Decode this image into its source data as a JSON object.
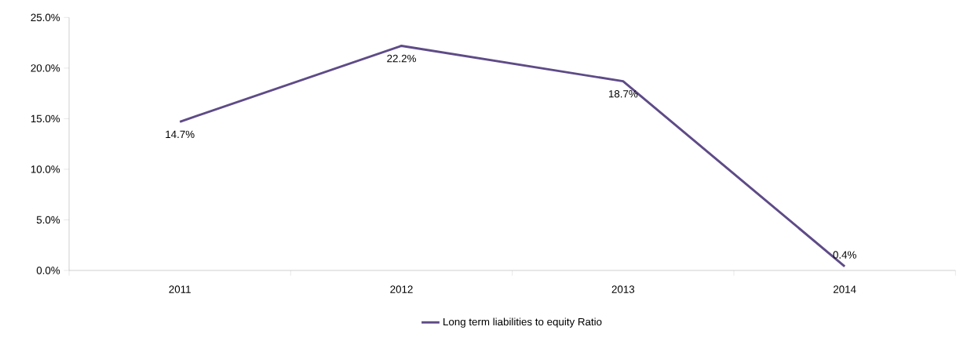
{
  "chart_data": {
    "type": "line",
    "categories": [
      "2011",
      "2012",
      "2013",
      "2014"
    ],
    "series": [
      {
        "name": "Long term liabilities to equity Ratio",
        "color": "#5e4b87",
        "values": [
          14.7,
          22.2,
          18.7,
          0.4
        ],
        "value_labels": [
          "14.7%",
          "22.2%",
          "18.7%",
          "0.4%"
        ]
      }
    ],
    "ylim": [
      0,
      25
    ],
    "yticks": [
      {
        "value": 0,
        "label": "0.0%"
      },
      {
        "value": 5,
        "label": "5.0%"
      },
      {
        "value": 10,
        "label": "10.0%"
      },
      {
        "value": 15,
        "label": "15.0%"
      },
      {
        "value": 20,
        "label": "20.0%"
      },
      {
        "value": 25,
        "label": "25.0%"
      }
    ],
    "grid": false,
    "legend": "bottom",
    "marker": "none",
    "line_style": "solid"
  }
}
